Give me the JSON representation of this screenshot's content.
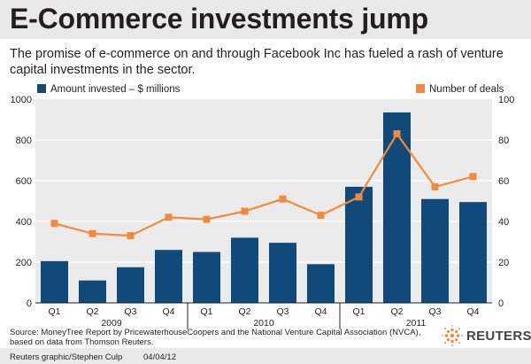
{
  "header": {
    "title": "E-Commerce investments jump",
    "subtitle": "The promise of e-commerce on and through Facebook Inc has fueled a rash of venture capital investments in the sector."
  },
  "chart_data": {
    "type": "bar+line",
    "title": "E-Commerce investments jump",
    "categories": [
      "Q1",
      "Q2",
      "Q3",
      "Q4",
      "Q1",
      "Q2",
      "Q3",
      "Q4",
      "Q1",
      "Q2",
      "Q3",
      "Q4"
    ],
    "years": [
      {
        "label": "2009",
        "quarters": 4
      },
      {
        "label": "2010",
        "quarters": 4
      },
      {
        "label": "2011",
        "quarters": 4
      }
    ],
    "series": [
      {
        "name": "Amount invested – $ millions",
        "type": "bar",
        "axis": "left",
        "color": "#0f4a7a",
        "values": [
          205,
          110,
          175,
          260,
          250,
          320,
          295,
          190,
          570,
          935,
          510,
          495
        ]
      },
      {
        "name": "Number of deals",
        "type": "line",
        "axis": "right",
        "color": "#f18a3c",
        "values": [
          39,
          34,
          33,
          42,
          41,
          45,
          51,
          43,
          52,
          83,
          57,
          62
        ]
      }
    ],
    "left_axis": {
      "min": 0,
      "max": 1000,
      "ticks": [
        "0",
        "200",
        "400",
        "600",
        "800",
        "1000"
      ]
    },
    "right_axis": {
      "min": 0,
      "max": 100,
      "ticks": [
        "0",
        "20",
        "40",
        "60",
        "80",
        "100"
      ]
    },
    "grid": true
  },
  "footer": {
    "source": "Source: MoneyTree Report by PricewaterhouseCoopers and the National Venture Capital Association (NVCA), based on data from Thomson Reuters.",
    "credit": "Reuters graphic/Stephen Culp",
    "date": "04/04/12",
    "logo_text": "REUTERS"
  }
}
